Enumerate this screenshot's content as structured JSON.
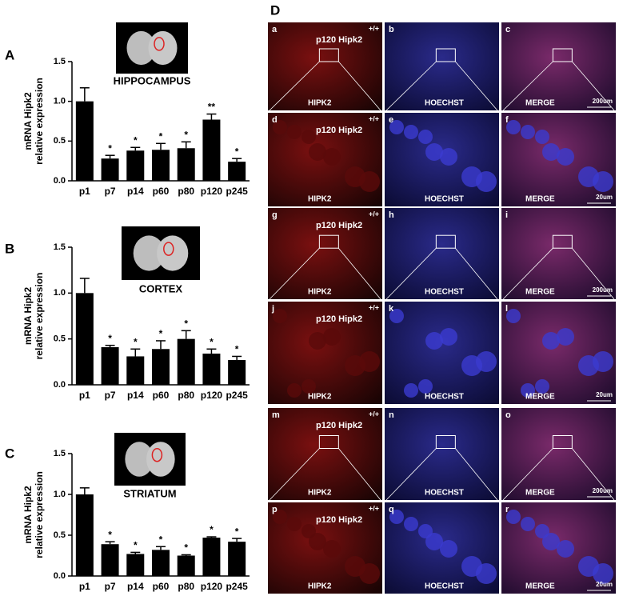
{
  "chart_data": [
    {
      "type": "bar",
      "panel": "A",
      "subtitle": "HIPPOCAMPUS",
      "ylabel": [
        "mRNA Hipk2",
        "relative expression"
      ],
      "categories": [
        "p1",
        "p7",
        "p14",
        "p60",
        "p80",
        "p120",
        "p245"
      ],
      "values": [
        1.0,
        0.28,
        0.38,
        0.39,
        0.41,
        0.77,
        0.24
      ],
      "errors": [
        0.17,
        0.04,
        0.04,
        0.08,
        0.08,
        0.07,
        0.04
      ],
      "significance": [
        null,
        "*",
        "*",
        "*",
        "*",
        "**",
        "*"
      ],
      "color": "#000000",
      "ylim": [
        0,
        1.5
      ],
      "yticks": [
        {
          "value": 0,
          "label": "0.0"
        },
        0.5,
        {
          "value": 1,
          "label": "1.0"
        },
        1.5
      ]
    },
    {
      "type": "bar",
      "panel": "B",
      "subtitle": "CORTEX",
      "ylabel": [
        "mRNA Hipk2",
        "relative expression"
      ],
      "categories": [
        "p1",
        "p7",
        "p14",
        "p60",
        "p80",
        "p120",
        "p245"
      ],
      "values": [
        1.0,
        0.41,
        0.31,
        0.39,
        0.5,
        0.34,
        0.27
      ],
      "errors": [
        0.16,
        0.02,
        0.08,
        0.09,
        0.09,
        0.05,
        0.04
      ],
      "significance": [
        null,
        "*",
        "*",
        "*",
        "*",
        "*",
        "*"
      ],
      "color": "#000000",
      "ylim": [
        0,
        1.5
      ],
      "yticks": [
        {
          "value": 0,
          "label": "0.0"
        },
        0.5,
        {
          "value": 1,
          "label": "1.0"
        },
        1.5
      ]
    },
    {
      "type": "bar",
      "panel": "C",
      "subtitle": "STRIATUM",
      "ylabel": [
        "mRNA Hipk2",
        "relative expression"
      ],
      "categories": [
        "p1",
        "p7",
        "p14",
        "p60",
        "p80",
        "p120",
        "p245"
      ],
      "values": [
        1.0,
        0.39,
        0.27,
        0.32,
        0.25,
        0.47,
        0.42
      ],
      "errors": [
        0.08,
        0.03,
        0.02,
        0.04,
        0.01,
        0.01,
        0.04
      ],
      "significance": [
        null,
        "*",
        "*",
        "*",
        "*",
        "*",
        "*"
      ],
      "color": "#000000",
      "ylim": [
        0,
        1.5
      ],
      "yticks": [
        {
          "value": 0,
          "label": "0.0"
        },
        0.5,
        {
          "value": 1,
          "label": "1.0"
        },
        1.5
      ]
    }
  ],
  "panel_d": {
    "label": "D",
    "rows": [
      {
        "cells": [
          {
            "letter": "a",
            "caption": "HIPK2",
            "genotype": "+/+",
            "name": "p120 Hipk2"
          },
          {
            "letter": "b",
            "caption": "HOECHST"
          },
          {
            "letter": "c",
            "caption": "MERGE",
            "scale": "200um"
          }
        ]
      },
      {
        "cells": [
          {
            "letter": "d",
            "caption": "HIPK2",
            "genotype": "+/+",
            "name": "p120 Hipk2"
          },
          {
            "letter": "e",
            "caption": "HOECHST"
          },
          {
            "letter": "f",
            "caption": "MERGE",
            "scale": "20um"
          }
        ]
      },
      {
        "cells": [
          {
            "letter": "g",
            "caption": "HIPK2",
            "genotype": "+/+",
            "name": "p120 Hipk2"
          },
          {
            "letter": "h",
            "caption": "HOECHST"
          },
          {
            "letter": "i",
            "caption": "MERGE",
            "scale": "200um"
          }
        ]
      },
      {
        "cells": [
          {
            "letter": "j",
            "caption": "HIPK2",
            "genotype": "+/+",
            "name": "p120 Hipk2"
          },
          {
            "letter": "k",
            "caption": "HOECHST"
          },
          {
            "letter": "l",
            "caption": "MERGE",
            "scale": "20um"
          }
        ]
      },
      {
        "cells": [
          {
            "letter": "m",
            "caption": "HIPK2",
            "genotype": "+/+",
            "name": "p120 Hipk2"
          },
          {
            "letter": "n",
            "caption": "HOECHST"
          },
          {
            "letter": "o",
            "caption": "MERGE",
            "scale": "200um"
          }
        ]
      },
      {
        "cells": [
          {
            "letter": "p",
            "caption": "HIPK2",
            "genotype": "+/+",
            "name": "p120 Hipk2"
          },
          {
            "letter": "q",
            "caption": "HOECHST"
          },
          {
            "letter": "r",
            "caption": "MERGE",
            "scale": "20um"
          }
        ]
      }
    ]
  }
}
